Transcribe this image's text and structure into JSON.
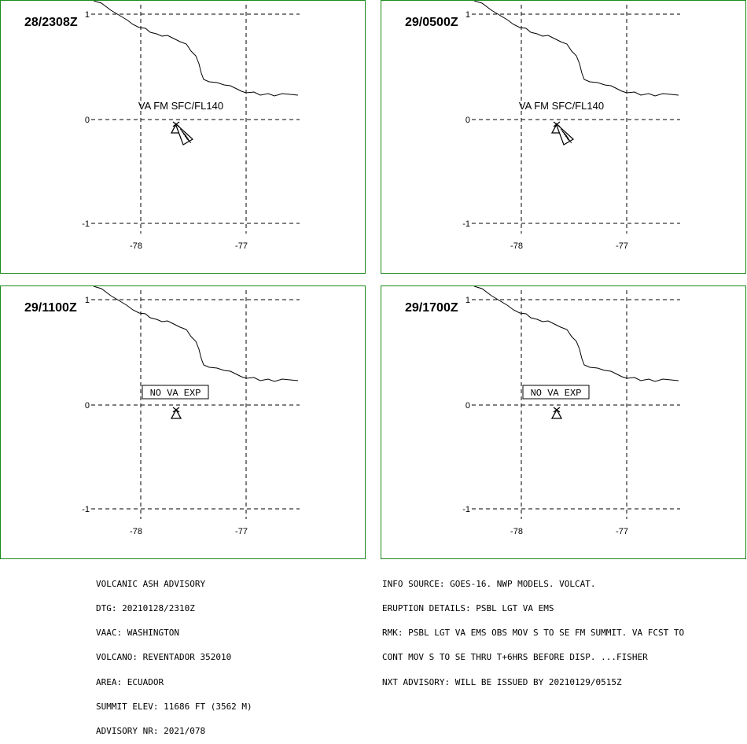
{
  "panels": [
    {
      "time": "28/2308Z",
      "va_label": "VA FM SFC/FL140",
      "ash_boxed": false,
      "has_ash_plume": true
    },
    {
      "time": "29/0500Z",
      "va_label": "VA FM SFC/FL140",
      "ash_boxed": false,
      "has_ash_plume": true
    },
    {
      "time": "29/1100Z",
      "va_label": "NO VA EXP",
      "ash_boxed": true,
      "has_ash_plume": false
    },
    {
      "time": "29/1700Z",
      "va_label": "NO VA EXP",
      "ash_boxed": true,
      "has_ash_plume": false
    }
  ],
  "axes": {
    "lat_ticks": [
      "1",
      "0",
      "-1"
    ],
    "lon_ticks": [
      "-78",
      "-77"
    ]
  },
  "colors": {
    "panel_border": "#1a8a1a",
    "map_ink": "#000000"
  },
  "advisory_left": [
    "VOLCANIC ASH ADVISORY",
    "DTG: 20210128/2310Z",
    "VAAC: WASHINGTON",
    "VOLCANO: REVENTADOR 352010",
    "AREA: ECUADOR",
    "SUMMIT ELEV: 11686 FT (3562 M)",
    "ADVISORY NR: 2021/078"
  ],
  "advisory_right": [
    "INFO SOURCE: GOES-16. NWP MODELS. VOLCAT.",
    "ERUPTION DETAILS: PSBL LGT VA EMS",
    "RMK: PSBL LGT VA EMS OBS MOV S TO SE FM SUMMIT. VA FCST TO",
    "CONT MOV S TO SE THRU T+6HRS BEFORE DISP. ...FISHER",
    "NXT ADVISORY: WILL BE ISSUED BY 20210129/0515Z"
  ]
}
